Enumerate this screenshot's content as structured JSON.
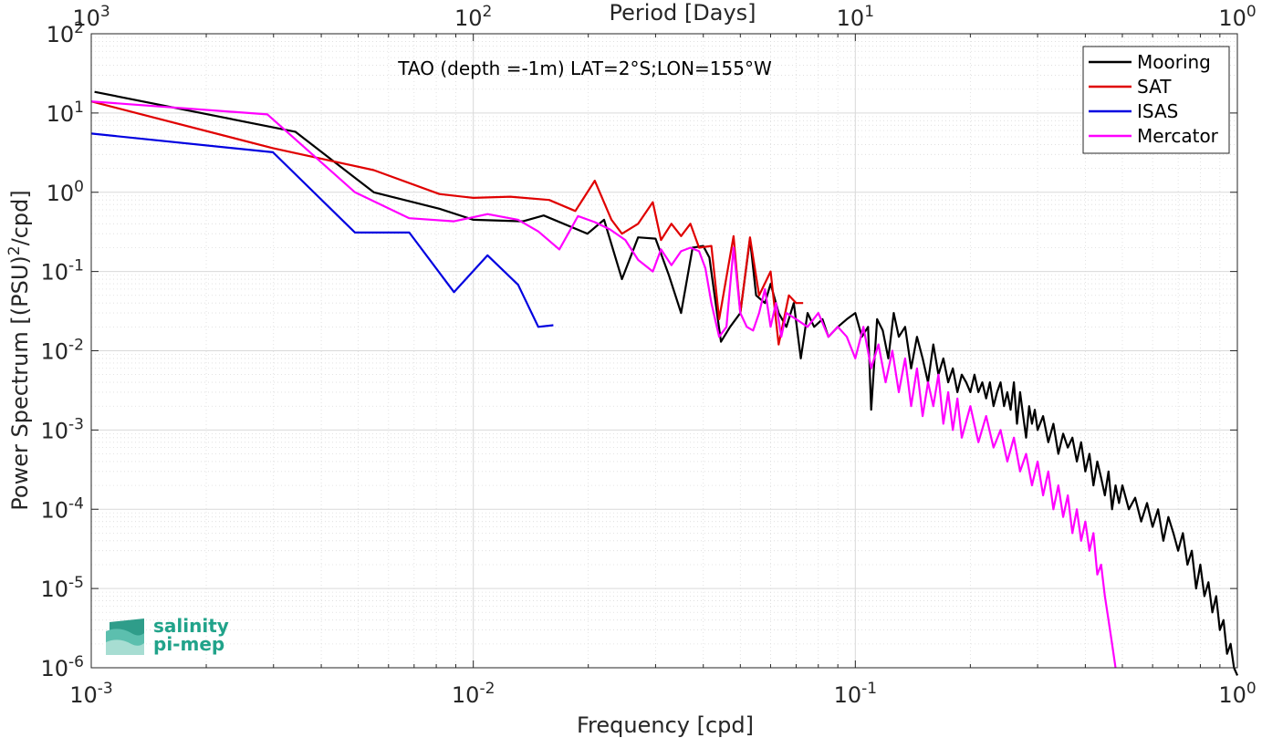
{
  "chart_data": {
    "type": "line",
    "title": "TAO (depth =-1m) LAT=2°S;LON=155°W",
    "xlabel": "Frequency [cpd]",
    "ylabel": "Power Spectrum [(PSU)",
    "ylabel_sup": "2",
    "ylabel_tail": "/cpd]",
    "top_xlabel": "Period [Days]",
    "xscale": "log",
    "yscale": "log",
    "xlim": [
      0.001,
      1
    ],
    "ylim": [
      1e-06,
      100
    ],
    "grid": true,
    "minor_grid": true,
    "legend_location": "top-right",
    "x_ticks": [
      {
        "value": 0.001,
        "base": "10",
        "exp": "-3"
      },
      {
        "value": 0.01,
        "base": "10",
        "exp": "-2"
      },
      {
        "value": 0.1,
        "base": "10",
        "exp": "-1"
      },
      {
        "value": 1,
        "base": "10",
        "exp": "0"
      }
    ],
    "top_ticks": [
      {
        "value": 0.001,
        "base": "10",
        "exp": "3"
      },
      {
        "value": 0.01,
        "base": "10",
        "exp": "2"
      },
      {
        "value": 0.1,
        "base": "10",
        "exp": "1"
      },
      {
        "value": 1,
        "base": "10",
        "exp": "0"
      }
    ],
    "y_ticks": [
      {
        "value": 100,
        "base": "10",
        "exp": "2"
      },
      {
        "value": 10,
        "base": "10",
        "exp": "1"
      },
      {
        "value": 1,
        "base": "10",
        "exp": "0"
      },
      {
        "value": 0.1,
        "base": "10",
        "exp": "-1"
      },
      {
        "value": 0.01,
        "base": "10",
        "exp": "-2"
      },
      {
        "value": 0.001,
        "base": "10",
        "exp": "-3"
      },
      {
        "value": 0.0001,
        "base": "10",
        "exp": "-4"
      },
      {
        "value": 1e-05,
        "base": "10",
        "exp": "-5"
      },
      {
        "value": 1e-06,
        "base": "10",
        "exp": "-6"
      }
    ],
    "series": [
      {
        "name": "Mooring",
        "color": "#000000",
        "points": [
          [
            0.00102,
            18.5
          ],
          [
            0.00342,
            5.8
          ],
          [
            0.00549,
            1.0
          ],
          [
            0.00815,
            0.62
          ],
          [
            0.01,
            0.45
          ],
          [
            0.0135,
            0.43
          ],
          [
            0.01528,
            0.51
          ],
          [
            0.0199,
            0.3
          ],
          [
            0.022,
            0.45
          ],
          [
            0.0245,
            0.08
          ],
          [
            0.027,
            0.27
          ],
          [
            0.03,
            0.26
          ],
          [
            0.0325,
            0.09
          ],
          [
            0.035,
            0.03
          ],
          [
            0.0375,
            0.2
          ],
          [
            0.04,
            0.21
          ],
          [
            0.0415,
            0.15
          ],
          [
            0.0445,
            0.013
          ],
          [
            0.047,
            0.02
          ],
          [
            0.05,
            0.03
          ],
          [
            0.053,
            0.26
          ],
          [
            0.055,
            0.05
          ],
          [
            0.058,
            0.04
          ],
          [
            0.06,
            0.07
          ],
          [
            0.063,
            0.03
          ],
          [
            0.066,
            0.02
          ],
          [
            0.069,
            0.04
          ],
          [
            0.072,
            0.008
          ],
          [
            0.075,
            0.03
          ],
          [
            0.078,
            0.02
          ],
          [
            0.082,
            0.025
          ],
          [
            0.085,
            0.015
          ],
          [
            0.09,
            0.02
          ],
          [
            0.095,
            0.025
          ],
          [
            0.1,
            0.03
          ],
          [
            0.104,
            0.015
          ],
          [
            0.108,
            0.02
          ],
          [
            0.11,
            0.0018
          ],
          [
            0.114,
            0.025
          ],
          [
            0.118,
            0.018
          ],
          [
            0.122,
            0.008
          ],
          [
            0.126,
            0.03
          ],
          [
            0.13,
            0.015
          ],
          [
            0.135,
            0.02
          ],
          [
            0.14,
            0.006
          ],
          [
            0.145,
            0.015
          ],
          [
            0.15,
            0.008
          ],
          [
            0.155,
            0.004
          ],
          [
            0.16,
            0.012
          ],
          [
            0.165,
            0.005
          ],
          [
            0.17,
            0.008
          ],
          [
            0.175,
            0.004
          ],
          [
            0.18,
            0.006
          ],
          [
            0.185,
            0.003
          ],
          [
            0.19,
            0.005
          ],
          [
            0.195,
            0.004
          ],
          [
            0.2,
            0.003
          ],
          [
            0.205,
            0.005
          ],
          [
            0.21,
            0.003
          ],
          [
            0.215,
            0.004
          ],
          [
            0.22,
            0.0025
          ],
          [
            0.225,
            0.004
          ],
          [
            0.23,
            0.002
          ],
          [
            0.235,
            0.003
          ],
          [
            0.24,
            0.004
          ],
          [
            0.245,
            0.002
          ],
          [
            0.25,
            0.003
          ],
          [
            0.255,
            0.0018
          ],
          [
            0.26,
            0.004
          ],
          [
            0.265,
            0.0012
          ],
          [
            0.27,
            0.003
          ],
          [
            0.275,
            0.0015
          ],
          [
            0.28,
            0.0008
          ],
          [
            0.285,
            0.002
          ],
          [
            0.29,
            0.0012
          ],
          [
            0.295,
            0.0018
          ],
          [
            0.3,
            0.001
          ],
          [
            0.31,
            0.0015
          ],
          [
            0.32,
            0.0007
          ],
          [
            0.33,
            0.0012
          ],
          [
            0.34,
            0.0005
          ],
          [
            0.35,
            0.0009
          ],
          [
            0.36,
            0.0006
          ],
          [
            0.37,
            0.0008
          ],
          [
            0.38,
            0.0004
          ],
          [
            0.39,
            0.0007
          ],
          [
            0.4,
            0.0003
          ],
          [
            0.41,
            0.0005
          ],
          [
            0.42,
            0.0002
          ],
          [
            0.43,
            0.0004
          ],
          [
            0.44,
            0.00025
          ],
          [
            0.45,
            0.00015
          ],
          [
            0.46,
            0.0003
          ],
          [
            0.47,
            0.0001
          ],
          [
            0.48,
            0.0002
          ],
          [
            0.49,
            0.00012
          ],
          [
            0.5,
            0.0002
          ],
          [
            0.52,
            0.0001
          ],
          [
            0.54,
            0.00014
          ],
          [
            0.56,
            7e-05
          ],
          [
            0.58,
            0.00012
          ],
          [
            0.6,
            6e-05
          ],
          [
            0.62,
            0.0001
          ],
          [
            0.64,
            4e-05
          ],
          [
            0.66,
            8e-05
          ],
          [
            0.68,
            5e-05
          ],
          [
            0.7,
            3e-05
          ],
          [
            0.72,
            5e-05
          ],
          [
            0.74,
            2e-05
          ],
          [
            0.76,
            3e-05
          ],
          [
            0.78,
            1e-05
          ],
          [
            0.8,
            2e-05
          ],
          [
            0.82,
            8e-06
          ],
          [
            0.84,
            1.2e-05
          ],
          [
            0.86,
            5e-06
          ],
          [
            0.88,
            8e-06
          ],
          [
            0.9,
            3e-06
          ],
          [
            0.92,
            4e-06
          ],
          [
            0.94,
            1.5e-06
          ],
          [
            0.96,
            2e-06
          ],
          [
            0.98,
            1e-06
          ],
          [
            1.0,
            8e-07
          ]
        ]
      },
      {
        "name": "SAT",
        "color": "#e00000",
        "points": [
          [
            0.001,
            14
          ],
          [
            0.00299,
            3.6
          ],
          [
            0.00549,
            1.9
          ],
          [
            0.00815,
            0.95
          ],
          [
            0.01,
            0.85
          ],
          [
            0.0125,
            0.88
          ],
          [
            0.0158,
            0.8
          ],
          [
            0.0185,
            0.58
          ],
          [
            0.0208,
            1.4
          ],
          [
            0.023,
            0.45
          ],
          [
            0.0245,
            0.3
          ],
          [
            0.027,
            0.4
          ],
          [
            0.0295,
            0.75
          ],
          [
            0.031,
            0.25
          ],
          [
            0.033,
            0.4
          ],
          [
            0.035,
            0.28
          ],
          [
            0.037,
            0.4
          ],
          [
            0.039,
            0.2
          ],
          [
            0.042,
            0.21
          ],
          [
            0.044,
            0.025
          ],
          [
            0.048,
            0.28
          ],
          [
            0.05,
            0.03
          ],
          [
            0.053,
            0.27
          ],
          [
            0.056,
            0.05
          ],
          [
            0.06,
            0.1
          ],
          [
            0.063,
            0.012
          ],
          [
            0.067,
            0.05
          ],
          [
            0.07,
            0.04
          ],
          [
            0.073,
            0.04
          ]
        ]
      },
      {
        "name": "ISAS",
        "color": "#0000e0",
        "points": [
          [
            0.001,
            5.5
          ],
          [
            0.00299,
            3.2
          ],
          [
            0.0049,
            0.31
          ],
          [
            0.0068,
            0.31
          ],
          [
            0.0089,
            0.055
          ],
          [
            0.0109,
            0.16
          ],
          [
            0.0131,
            0.068
          ],
          [
            0.0148,
            0.02
          ],
          [
            0.0162,
            0.021
          ]
        ]
      },
      {
        "name": "Mercator",
        "color": "#ff00ff",
        "points": [
          [
            0.001,
            14
          ],
          [
            0.00289,
            9.6
          ],
          [
            0.0049,
            1.0
          ],
          [
            0.0068,
            0.47
          ],
          [
            0.0089,
            0.43
          ],
          [
            0.0109,
            0.53
          ],
          [
            0.0131,
            0.45
          ],
          [
            0.0148,
            0.32
          ],
          [
            0.0168,
            0.19
          ],
          [
            0.0188,
            0.5
          ],
          [
            0.0208,
            0.42
          ],
          [
            0.0228,
            0.34
          ],
          [
            0.025,
            0.25
          ],
          [
            0.027,
            0.14
          ],
          [
            0.0295,
            0.1
          ],
          [
            0.031,
            0.19
          ],
          [
            0.033,
            0.12
          ],
          [
            0.035,
            0.18
          ],
          [
            0.037,
            0.2
          ],
          [
            0.039,
            0.18
          ],
          [
            0.0405,
            0.11
          ],
          [
            0.042,
            0.04
          ],
          [
            0.044,
            0.015
          ],
          [
            0.046,
            0.02
          ],
          [
            0.048,
            0.2
          ],
          [
            0.05,
            0.03
          ],
          [
            0.052,
            0.02
          ],
          [
            0.054,
            0.018
          ],
          [
            0.056,
            0.03
          ],
          [
            0.058,
            0.06
          ],
          [
            0.06,
            0.02
          ],
          [
            0.062,
            0.04
          ],
          [
            0.064,
            0.015
          ],
          [
            0.066,
            0.03
          ],
          [
            0.07,
            0.025
          ],
          [
            0.075,
            0.02
          ],
          [
            0.08,
            0.03
          ],
          [
            0.085,
            0.015
          ],
          [
            0.09,
            0.02
          ],
          [
            0.095,
            0.015
          ],
          [
            0.1,
            0.008
          ],
          [
            0.105,
            0.02
          ],
          [
            0.11,
            0.006
          ],
          [
            0.115,
            0.012
          ],
          [
            0.12,
            0.004
          ],
          [
            0.125,
            0.01
          ],
          [
            0.13,
            0.003
          ],
          [
            0.135,
            0.008
          ],
          [
            0.14,
            0.002
          ],
          [
            0.145,
            0.006
          ],
          [
            0.15,
            0.0015
          ],
          [
            0.155,
            0.004
          ],
          [
            0.16,
            0.002
          ],
          [
            0.165,
            0.005
          ],
          [
            0.17,
            0.0012
          ],
          [
            0.175,
            0.003
          ],
          [
            0.18,
            0.001
          ],
          [
            0.185,
            0.0025
          ],
          [
            0.19,
            0.0008
          ],
          [
            0.2,
            0.002
          ],
          [
            0.21,
            0.0007
          ],
          [
            0.22,
            0.0015
          ],
          [
            0.23,
            0.0006
          ],
          [
            0.24,
            0.001
          ],
          [
            0.25,
            0.0004
          ],
          [
            0.26,
            0.0008
          ],
          [
            0.27,
            0.0003
          ],
          [
            0.28,
            0.0005
          ],
          [
            0.29,
            0.0002
          ],
          [
            0.3,
            0.0004
          ],
          [
            0.31,
            0.00015
          ],
          [
            0.32,
            0.0003
          ],
          [
            0.33,
            0.0001
          ],
          [
            0.34,
            0.0002
          ],
          [
            0.35,
            8e-05
          ],
          [
            0.36,
            0.00015
          ],
          [
            0.37,
            5e-05
          ],
          [
            0.38,
            0.0001
          ],
          [
            0.39,
            4e-05
          ],
          [
            0.4,
            7e-05
          ],
          [
            0.41,
            3e-05
          ],
          [
            0.42,
            5e-05
          ],
          [
            0.43,
            1.5e-05
          ],
          [
            0.44,
            2e-05
          ],
          [
            0.45,
            8e-06
          ],
          [
            0.46,
            4e-06
          ],
          [
            0.47,
            2e-06
          ],
          [
            0.48,
            1e-06
          ]
        ]
      }
    ]
  },
  "logo": {
    "line1": "salinity",
    "line2": "pi-mep"
  }
}
